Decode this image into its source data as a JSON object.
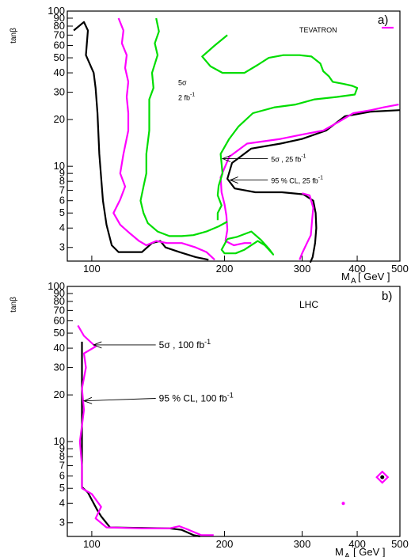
{
  "chart_data": [
    {
      "type": "line",
      "panel_label": "a)",
      "legend_text": "TEVATRON",
      "xlabel": "M",
      "xlabel_sub": "A",
      "xlabel_unit": "[ GeV ]",
      "ylabel": "tanβ",
      "xscale": "log",
      "yscale": "log",
      "xlim": [
        88,
        500
      ],
      "ylim": [
        2.45,
        100
      ],
      "xticks": [
        100,
        200,
        300,
        400,
        500
      ],
      "xtick_labels": [
        "100",
        "200",
        "300",
        "400",
        "500"
      ],
      "yticks": [
        3,
        4,
        5,
        6,
        7,
        8,
        9,
        10,
        20,
        30,
        40,
        50,
        60,
        70,
        80,
        90,
        100
      ],
      "ytick_labels": [
        "3",
        "4",
        "5",
        "6",
        "7",
        "8",
        "9",
        "10",
        "20",
        "30",
        "40",
        "50",
        "60",
        "70",
        "80",
        "90",
        "100"
      ],
      "grid": false,
      "annotations": [
        {
          "text": "5σ",
          "sup": "",
          "suffix": "",
          "x": 157,
          "y": 35
        },
        {
          "text": "2 fb",
          "sup": "-1",
          "suffix": "",
          "x": 157,
          "y": 28
        },
        {
          "text": "5σ , 25 fb",
          "sup": "-1",
          "suffix": "",
          "x": 255,
          "y": 11.2,
          "arrow_to": [
            198,
            11.2
          ]
        },
        {
          "text": "95 % CL, 25 fb",
          "sup": "-1",
          "suffix": "",
          "x": 255,
          "y": 8.15,
          "arrow_to": [
            206,
            8.15
          ]
        }
      ],
      "series": [
        {
          "color": "#000000",
          "points": [
            [
              91,
              75
            ],
            [
              96,
              85
            ],
            [
              98,
              75
            ],
            [
              97,
              52
            ],
            [
              101,
              40
            ],
            [
              102,
              32
            ],
            [
              103,
              22
            ],
            [
              104,
              12
            ],
            [
              106,
              6
            ],
            [
              108,
              4.2
            ],
            [
              111,
              3.1
            ],
            [
              115,
              2.8
            ],
            [
              130,
              2.8
            ],
            [
              137,
              3.2
            ],
            [
              143,
              3.3
            ],
            [
              147,
              3.0
            ],
            [
              158,
              2.8
            ],
            [
              172,
              2.6
            ],
            [
              184,
              2.5
            ]
          ]
        },
        {
          "color": "#000000",
          "points": [
            [
              500,
              23
            ],
            [
              430,
              22.5
            ],
            [
              375,
              21
            ],
            [
              340,
              17
            ],
            [
              300,
              15
            ],
            [
              268,
              14
            ],
            [
              230,
              13
            ],
            [
              208,
              10.5
            ],
            [
              203,
              8.3
            ],
            [
              211,
              7.2
            ],
            [
              235,
              6.8
            ],
            [
              270,
              6.8
            ],
            [
              302,
              6.6
            ],
            [
              318,
              6.0
            ],
            [
              322,
              5.0
            ],
            [
              323,
              4.0
            ],
            [
              321,
              3.2
            ],
            [
              317,
              2.6
            ],
            [
              313,
              2.4
            ]
          ]
        },
        {
          "color": "#ff00ff",
          "points": [
            [
              115,
              90
            ],
            [
              118,
              75
            ],
            [
              117,
              62
            ],
            [
              120,
              52
            ],
            [
              119,
              43
            ],
            [
              121,
              35
            ],
            [
              120,
              28
            ],
            [
              121,
              22
            ],
            [
              121,
              17
            ],
            [
              118,
              12
            ],
            [
              116,
              9
            ],
            [
              119,
              7.4
            ],
            [
              116,
              6.1
            ],
            [
              112,
              5.0
            ],
            [
              116,
              4.2
            ],
            [
              122,
              3.7
            ],
            [
              128,
              3.3
            ],
            [
              133,
              3.1
            ],
            [
              140,
              3.3
            ],
            [
              148,
              3.2
            ],
            [
              160,
              3.2
            ],
            [
              172,
              3.0
            ],
            [
              182,
              2.8
            ],
            [
              190,
              2.5
            ]
          ]
        },
        {
          "color": "#ff00ff",
          "points": [
            [
              497,
              25
            ],
            [
              460,
              24
            ],
            [
              430,
              23
            ],
            [
              392,
              22
            ],
            [
              365,
              19.5
            ],
            [
              335,
              17
            ],
            [
              300,
              16
            ],
            [
              268,
              15
            ],
            [
              225,
              14
            ],
            [
              205,
              11.5
            ],
            [
              196,
              8.5
            ],
            [
              197,
              6.8
            ],
            [
              200,
              5.7
            ],
            [
              202,
              4.8
            ],
            [
              203,
              3.9
            ],
            [
              201,
              3.3
            ],
            [
              210,
              3.1
            ],
            [
              222,
              3.2
            ],
            [
              230,
              3.2
            ]
          ]
        },
        {
          "color": "#ff00ff",
          "points": [
            [
              300,
              6.7
            ],
            [
              312,
              6.5
            ],
            [
              318,
              5.4
            ],
            [
              316,
              4.5
            ],
            [
              314,
              3.6
            ],
            [
              306,
              3.1
            ],
            [
              300,
              2.75
            ],
            [
              296,
              2.5
            ]
          ]
        },
        {
          "color": "#00dd00",
          "points": [
            [
              140,
              90
            ],
            [
              142,
              74
            ],
            [
              139,
              62
            ],
            [
              141,
              52
            ],
            [
              137,
              40
            ],
            [
              138,
              32
            ],
            [
              135,
              27
            ],
            [
              135,
              17
            ],
            [
              133,
              12
            ],
            [
              133,
              9
            ],
            [
              131,
              7.4
            ],
            [
              129,
              6.0
            ],
            [
              131,
              5.0
            ],
            [
              134,
              4.3
            ],
            [
              141,
              3.8
            ],
            [
              150,
              3.55
            ],
            [
              160,
              3.55
            ],
            [
              170,
              3.6
            ],
            [
              182,
              3.8
            ],
            [
              194,
              4.1
            ],
            [
              203,
              4.4
            ]
          ]
        },
        {
          "color": "#00dd00",
          "points": [
            [
              203,
              70
            ],
            [
              190,
              60
            ],
            [
              178,
              51
            ],
            [
              186,
              44
            ],
            [
              198,
              40
            ],
            [
              222,
              40
            ],
            [
              238,
              45
            ],
            [
              252,
              50
            ],
            [
              272,
              52
            ],
            [
              296,
              52
            ],
            [
              315,
              51
            ],
            [
              330,
              46
            ],
            [
              335,
              41
            ],
            [
              345,
              38
            ],
            [
              352,
              35
            ],
            [
              372,
              34
            ],
            [
              390,
              33
            ],
            [
              400,
              32
            ],
            [
              395,
              29
            ],
            [
              360,
              28
            ],
            [
              320,
              27
            ],
            [
              290,
              25
            ],
            [
              260,
              24
            ],
            [
              232,
              22
            ],
            [
              215,
              18
            ],
            [
              205,
              15
            ],
            [
              196,
              12
            ],
            [
              198,
              9
            ],
            [
              194,
              7.5
            ],
            [
              193,
              6.5
            ],
            [
              197,
              5.6
            ],
            [
              193,
              5.0
            ],
            [
              193,
              4.5
            ]
          ]
        },
        {
          "color": "#00dd00",
          "points": [
            [
              203,
              3.4
            ],
            [
              213,
              3.5
            ],
            [
              230,
              3.8
            ],
            [
              242,
              3.35
            ],
            [
              252,
              2.95
            ],
            [
              258,
              2.7
            ],
            [
              247,
              3.1
            ],
            [
              238,
              3.3
            ],
            [
              222,
              2.9
            ],
            [
              212,
              2.75
            ],
            [
              200,
              2.75
            ],
            [
              197,
              2.9
            ],
            [
              203,
              3.4
            ]
          ]
        }
      ]
    },
    {
      "type": "line",
      "panel_label": "b)",
      "legend_text": "LHC",
      "xlabel": "M",
      "xlabel_sub": "A",
      "xlabel_unit": "[ GeV ]",
      "ylabel": "tanβ",
      "xscale": "log",
      "yscale": "log",
      "xlim": [
        88,
        500
      ],
      "ylim": [
        2.45,
        100
      ],
      "xticks": [
        100,
        200,
        300,
        400,
        500
      ],
      "xtick_labels": [
        "100",
        "200",
        "300",
        "400",
        "500"
      ],
      "yticks": [
        3,
        4,
        5,
        6,
        7,
        8,
        9,
        10,
        20,
        30,
        40,
        50,
        60,
        70,
        80,
        90,
        100
      ],
      "ytick_labels": [
        "3",
        "4",
        "5",
        "6",
        "7",
        "8",
        "9",
        "10",
        "20",
        "30",
        "40",
        "50",
        "60",
        "70",
        "80",
        "90",
        "100"
      ],
      "grid": false,
      "annotations": [
        {
          "text": "5σ , 100 fb",
          "sup": "-1",
          "suffix": "",
          "x": 142,
          "y": 42,
          "arrow_to": [
            101,
            42
          ]
        },
        {
          "text": "95 % CL, 100 fb",
          "sup": "-1",
          "suffix": "",
          "x": 142,
          "y": 19,
          "arrow_to": [
            96,
            18.3
          ]
        }
      ],
      "series": [
        {
          "color": "#000000",
          "points": [
            [
              95,
              44
            ],
            [
              95,
              30
            ],
            [
              95,
              20
            ],
            [
              95,
              14
            ],
            [
              95,
              10
            ],
            [
              95,
              7
            ],
            [
              95,
              5.1
            ],
            [
              98,
              4.7
            ],
            [
              103,
              3.6
            ],
            [
              105,
              3.3
            ],
            [
              110,
              2.8
            ],
            [
              150,
              2.76
            ],
            [
              160,
              2.7
            ],
            [
              170,
              2.5
            ],
            [
              176,
              2.45
            ]
          ]
        },
        {
          "color": "#ff00ff",
          "points": [
            [
              93,
              56
            ],
            [
              96,
              48
            ],
            [
              102,
              41
            ],
            [
              96,
              37
            ],
            [
              97,
              30
            ],
            [
              95,
              22
            ],
            [
              96,
              16
            ],
            [
              94,
              10
            ],
            [
              95,
              7
            ],
            [
              95,
              5.0
            ],
            [
              100,
              4.6
            ],
            [
              105,
              3.8
            ],
            [
              102,
              3.2
            ],
            [
              108,
              2.8
            ],
            [
              130,
              2.76
            ],
            [
              150,
              2.76
            ],
            [
              158,
              2.85
            ],
            [
              166,
              2.7
            ],
            [
              177,
              2.5
            ],
            [
              189,
              2.5
            ]
          ]
        }
      ],
      "points": [
        {
          "x": 372,
          "y": 4.0,
          "color": "#ff00ff",
          "style": "small-dot"
        },
        {
          "x": 456,
          "y": 5.9,
          "color": "#ff00ff",
          "style": "diamond"
        },
        {
          "x": 456,
          "y": 5.9,
          "color": "#000000",
          "style": "center-dot"
        }
      ]
    }
  ]
}
